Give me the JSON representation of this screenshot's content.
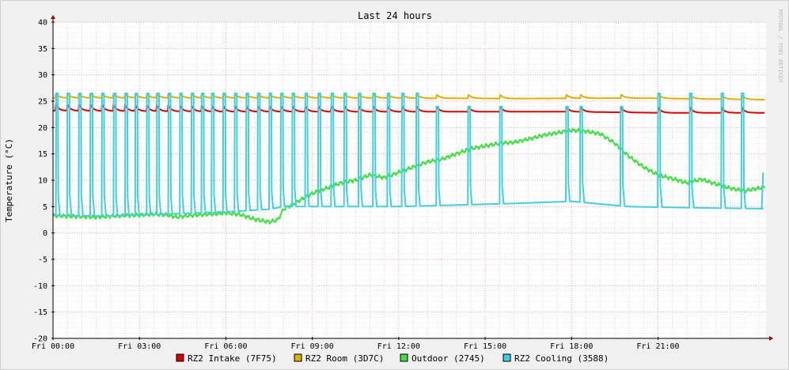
{
  "chart_data": {
    "type": "line",
    "title": "Last 24 hours",
    "ylabel": "Temperature (°C)",
    "watermark": "RRDTOOL / TOBI OETIKER",
    "ylim": [
      -20,
      40
    ],
    "y_ticks": [
      -20,
      -15,
      -10,
      -5,
      0,
      5,
      10,
      15,
      20,
      25,
      30,
      35,
      40
    ],
    "xlim_hours": [
      0,
      24.75
    ],
    "x_ticks": [
      {
        "hour": 0,
        "label": "Fri 00:00"
      },
      {
        "hour": 3,
        "label": "Fri 03:00"
      },
      {
        "hour": 6,
        "label": "Fri 06:00"
      },
      {
        "hour": 9,
        "label": "Fri 09:00"
      },
      {
        "hour": 12,
        "label": "Fri 12:00"
      },
      {
        "hour": 15,
        "label": "Fri 15:00"
      },
      {
        "hour": 18,
        "label": "Fri 18:00"
      },
      {
        "hour": 21,
        "label": "Fri 21:00"
      }
    ],
    "grid": true,
    "legend_position": "bottom",
    "series": [
      {
        "name": "RZ2 Intake (7F75)",
        "color": "#e00000",
        "baseline": [
          [
            0,
            23.2
          ],
          [
            6,
            23.0
          ],
          [
            10,
            23.0
          ],
          [
            14,
            23.0
          ],
          [
            18,
            23.0
          ],
          [
            21,
            22.8
          ],
          [
            24.7,
            22.8
          ]
        ],
        "bumps": [
          0.1,
          0.5,
          0.9,
          1.3,
          1.7,
          2.1,
          2.5,
          2.85,
          3.25,
          3.6,
          4.0,
          4.4,
          4.8,
          5.15,
          5.5,
          5.9,
          6.3,
          6.7,
          7.1,
          7.5,
          7.9,
          8.3,
          8.75,
          9.2,
          9.65,
          10.1,
          10.6,
          11.1,
          11.6,
          12.1,
          12.6,
          13.3,
          14.4,
          15.5,
          17.8,
          18.3,
          19.7,
          21.0,
          22.1,
          23.2,
          23.9
        ],
        "bump_height": 1.2,
        "bump_decay": 0.3
      },
      {
        "name": "RZ2 Room (3D7C)",
        "color": "#e0b000",
        "baseline": [
          [
            0,
            25.6
          ],
          [
            8,
            25.6
          ],
          [
            12,
            25.6
          ],
          [
            16,
            25.5
          ],
          [
            20,
            25.6
          ],
          [
            24.7,
            25.3
          ]
        ],
        "bumps": [
          0.1,
          0.5,
          0.9,
          1.3,
          1.7,
          2.1,
          2.5,
          2.85,
          3.25,
          3.6,
          4.0,
          4.4,
          4.8,
          5.15,
          5.5,
          5.9,
          6.3,
          6.7,
          7.1,
          7.5,
          7.9,
          8.3,
          8.75,
          9.2,
          9.65,
          10.1,
          10.6,
          11.1,
          11.6,
          12.1,
          12.6,
          13.3,
          14.4,
          15.5,
          17.8,
          18.3,
          19.7,
          21.0,
          22.1,
          23.2,
          23.9
        ],
        "bump_height": 0.8,
        "bump_decay": 0.35
      },
      {
        "name": "Outdoor (2745)",
        "color": "#40e040",
        "points": [
          [
            0,
            3.3
          ],
          [
            0.5,
            3.2
          ],
          [
            1,
            3.1
          ],
          [
            1.5,
            3.0
          ],
          [
            2,
            3.2
          ],
          [
            2.5,
            3.3
          ],
          [
            3,
            3.4
          ],
          [
            3.5,
            3.6
          ],
          [
            4,
            3.4
          ],
          [
            4.3,
            3.0
          ],
          [
            4.7,
            3.3
          ],
          [
            5,
            3.4
          ],
          [
            5.5,
            3.6
          ],
          [
            6,
            3.8
          ],
          [
            6.5,
            3.5
          ],
          [
            7,
            2.6
          ],
          [
            7.5,
            2.1
          ],
          [
            7.8,
            2.5
          ],
          [
            8,
            4.5
          ],
          [
            8.5,
            6.0
          ],
          [
            9,
            7.5
          ],
          [
            9.5,
            8.5
          ],
          [
            10,
            9.5
          ],
          [
            10.5,
            10.0
          ],
          [
            11,
            11.0
          ],
          [
            11.5,
            10.5
          ],
          [
            12,
            11.5
          ],
          [
            12.5,
            12.5
          ],
          [
            13,
            13.5
          ],
          [
            13.5,
            14.0
          ],
          [
            14,
            15.0
          ],
          [
            14.5,
            16.0
          ],
          [
            15,
            16.5
          ],
          [
            15.5,
            17.0
          ],
          [
            16,
            17.2
          ],
          [
            16.5,
            17.8
          ],
          [
            17,
            18.5
          ],
          [
            17.5,
            19.0
          ],
          [
            18,
            19.5
          ],
          [
            18.5,
            19.3
          ],
          [
            19,
            18.8
          ],
          [
            19.5,
            17.0
          ],
          [
            20,
            14.5
          ],
          [
            20.5,
            12.5
          ],
          [
            21,
            11.0
          ],
          [
            21.5,
            10.3
          ],
          [
            22,
            9.5
          ],
          [
            22.5,
            10.2
          ],
          [
            23,
            9.3
          ],
          [
            23.5,
            8.5
          ],
          [
            24,
            8.0
          ],
          [
            24.5,
            8.5
          ],
          [
            24.7,
            8.7
          ]
        ]
      },
      {
        "name": "RZ2 Cooling (3588)",
        "color": "#40d0e0",
        "baseline": [
          [
            0,
            3.3
          ],
          [
            2,
            3.2
          ],
          [
            4,
            3.6
          ],
          [
            6,
            4.0
          ],
          [
            7.5,
            4.5
          ],
          [
            8,
            5.0
          ],
          [
            10,
            5.0
          ],
          [
            12,
            5.0
          ],
          [
            14,
            5.3
          ],
          [
            16,
            5.6
          ],
          [
            18,
            6.0
          ],
          [
            20,
            5.0
          ],
          [
            22,
            4.8
          ],
          [
            24.7,
            4.6
          ]
        ],
        "spikes": [
          0.1,
          0.5,
          0.9,
          1.3,
          1.7,
          2.1,
          2.5,
          2.85,
          3.25,
          3.6,
          4.0,
          4.4,
          4.8,
          5.15,
          5.5,
          5.9,
          6.3,
          6.7,
          7.1,
          7.5,
          7.9,
          8.3,
          8.75,
          9.2,
          9.65,
          10.1,
          10.6,
          11.1,
          11.6,
          12.1,
          12.6,
          13.3,
          14.4,
          15.5,
          17.8,
          18.3,
          19.7,
          21.0,
          22.1,
          23.2,
          23.9
        ],
        "spike_height": 26.5,
        "spike_width": 0.08,
        "extra_points": [
          [
            24.6,
            4.8
          ],
          [
            24.65,
            11.5
          ]
        ]
      }
    ]
  }
}
